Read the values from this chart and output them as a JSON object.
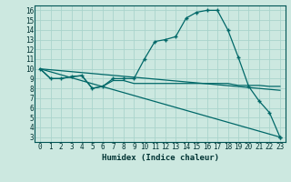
{
  "xlabel": "Humidex (Indice chaleur)",
  "bg_color": "#cce8e0",
  "grid_color": "#aad4cc",
  "line_color": "#006868",
  "xlim": [
    -0.5,
    23.5
  ],
  "ylim": [
    2.5,
    16.5
  ],
  "xticks": [
    0,
    1,
    2,
    3,
    4,
    5,
    6,
    7,
    8,
    9,
    10,
    11,
    12,
    13,
    14,
    15,
    16,
    17,
    18,
    19,
    20,
    21,
    22,
    23
  ],
  "yticks": [
    3,
    4,
    5,
    6,
    7,
    8,
    9,
    10,
    11,
    12,
    13,
    14,
    15,
    16
  ],
  "curve1_x": [
    0,
    1,
    2,
    3,
    4,
    5,
    6,
    7,
    8,
    9,
    10,
    11,
    12,
    13,
    14,
    15,
    16,
    17,
    18,
    19,
    20,
    21,
    22,
    23
  ],
  "curve1_y": [
    10,
    9,
    9,
    9.2,
    9.3,
    8.0,
    8.2,
    9.0,
    9.0,
    9.0,
    11.0,
    12.8,
    13.0,
    13.3,
    15.2,
    15.8,
    16.0,
    16.0,
    14.0,
    11.2,
    8.2,
    6.7,
    5.5,
    3.0
  ],
  "curve2_x": [
    0,
    1,
    2,
    3,
    4,
    5,
    6,
    7,
    8,
    9,
    10,
    11,
    12,
    13,
    14,
    15,
    16,
    17,
    18,
    19,
    20,
    21,
    22,
    23
  ],
  "curve2_y": [
    10,
    9,
    9,
    9.2,
    9.3,
    8.0,
    8.2,
    8.8,
    8.8,
    8.5,
    8.5,
    8.5,
    8.5,
    8.5,
    8.5,
    8.5,
    8.5,
    8.5,
    8.5,
    8.3,
    8.3,
    8.3,
    8.2,
    8.2
  ],
  "line1_x": [
    0,
    23
  ],
  "line1_y": [
    10,
    7.8
  ],
  "line2_x": [
    0,
    23
  ],
  "line2_y": [
    10,
    3.0
  ]
}
